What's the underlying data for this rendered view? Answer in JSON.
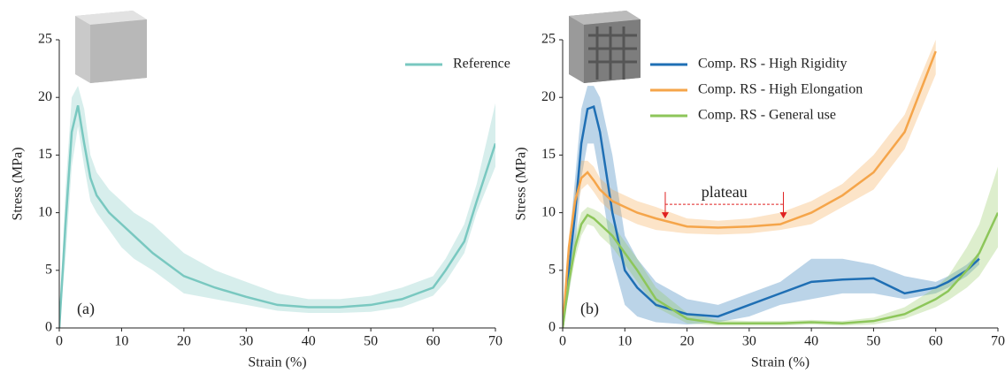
{
  "chart_data": [
    {
      "type": "line",
      "label": "(a)",
      "xlabel": "Strain (%)",
      "ylabel": "Stress (MPa)",
      "xlim": [
        0,
        70
      ],
      "xticks": [
        0,
        10,
        20,
        30,
        40,
        50,
        60,
        70
      ],
      "ylim": [
        0,
        25
      ],
      "yticks": [
        0,
        5,
        10,
        15,
        20,
        25
      ],
      "legend": "upper right",
      "x": [
        0,
        1,
        2,
        3,
        4,
        5,
        6,
        8,
        10,
        12,
        15,
        20,
        25,
        30,
        35,
        40,
        45,
        50,
        55,
        60,
        62,
        65,
        67,
        70
      ],
      "series": [
        {
          "name": "Reference",
          "color": "#79c8c0",
          "values": [
            0,
            9,
            17,
            19.3,
            16,
            13,
            11.5,
            10,
            9,
            8,
            6.5,
            4.5,
            3.5,
            2.7,
            2,
            1.8,
            1.8,
            2,
            2.5,
            3.5,
            5,
            7.5,
            11,
            16
          ],
          "upper": [
            0,
            12,
            20,
            21,
            19,
            15,
            13.5,
            12,
            11,
            10,
            9,
            6.5,
            5,
            4,
            3,
            2.5,
            2.5,
            2.8,
            3.5,
            4.5,
            6,
            9,
            12.5,
            19.5
          ],
          "lower": [
            0,
            6,
            14,
            17.5,
            14,
            11,
            10,
            8.5,
            7,
            6,
            5,
            3,
            2.5,
            2,
            1.5,
            1.3,
            1.3,
            1.4,
            1.8,
            2.8,
            4,
            6.5,
            10,
            14
          ]
        }
      ]
    },
    {
      "type": "line",
      "label": "(b)",
      "xlabel": "Strain (%)",
      "ylabel": "Stress (MPa)",
      "xlim": [
        0,
        70
      ],
      "xticks": [
        0,
        10,
        20,
        30,
        40,
        50,
        60,
        70
      ],
      "ylim": [
        0,
        25
      ],
      "yticks": [
        0,
        5,
        10,
        15,
        20,
        25
      ],
      "legend": "upper center",
      "x": [
        0,
        1,
        2,
        3,
        4,
        5,
        6,
        8,
        10,
        12,
        15,
        20,
        25,
        30,
        35,
        40,
        45,
        50,
        55,
        60,
        62,
        65,
        67,
        70
      ],
      "series": [
        {
          "name": "Comp. RS - High Rigidity",
          "color": "#1f6fb4",
          "values": [
            0,
            5,
            10,
            16,
            19,
            19.2,
            17,
            10,
            5,
            3.5,
            2,
            1.2,
            1,
            2,
            3,
            4,
            4.2,
            4.3,
            3,
            3.5,
            4,
            5,
            6,
            null
          ],
          "upper": [
            0,
            7,
            13,
            19,
            21,
            21,
            20,
            15,
            8,
            6,
            4,
            2.5,
            2,
            3,
            4,
            6,
            6,
            5.5,
            4.5,
            4,
            4.5,
            5.5,
            6.5,
            null
          ],
          "lower": [
            0,
            3,
            7,
            13,
            16,
            16,
            13,
            6,
            2,
            1,
            0.5,
            0.3,
            0.5,
            1,
            2,
            2.5,
            3,
            3,
            2.5,
            3,
            3.5,
            4.5,
            5.5,
            null
          ]
        },
        {
          "name": "Comp. RS - High Elongation",
          "color": "#f5a54a",
          "values": [
            0,
            7,
            11,
            13,
            13.5,
            12.8,
            12,
            11,
            10.5,
            10,
            9.5,
            8.8,
            8.7,
            8.8,
            9,
            10,
            11.5,
            13.5,
            17,
            24,
            null,
            null,
            null,
            null
          ],
          "upper": [
            0,
            8,
            12,
            14.5,
            14.5,
            14,
            13,
            12,
            11.5,
            11,
            10.5,
            9.5,
            9.3,
            9.5,
            10,
            11,
            12.5,
            15,
            18.5,
            25,
            null,
            null,
            null,
            null
          ],
          "lower": [
            0,
            6,
            10,
            12,
            12.5,
            11.8,
            11,
            10,
            9.5,
            9,
            8.5,
            8.2,
            8.1,
            8.2,
            8.5,
            9,
            10.5,
            12,
            15.5,
            22,
            null,
            null,
            null,
            null
          ]
        },
        {
          "name": "Comp. RS - General use",
          "color": "#8dc65a",
          "values": [
            0,
            4,
            7,
            9,
            9.8,
            9.5,
            9,
            8,
            6.5,
            5,
            2.5,
            0.8,
            0.4,
            0.4,
            0.4,
            0.5,
            0.4,
            0.6,
            1.2,
            2.5,
            3.2,
            5,
            6.5,
            10
          ],
          "upper": [
            0,
            5,
            8,
            10,
            10.5,
            10.3,
            10,
            9,
            7.5,
            6,
            3.5,
            1.3,
            0.7,
            0.6,
            0.6,
            0.7,
            0.6,
            0.9,
            1.8,
            3.5,
            4.5,
            7,
            9,
            14
          ],
          "lower": [
            0,
            3,
            6,
            8,
            9,
            8.8,
            8,
            7,
            5.5,
            4,
            1.8,
            0.4,
            0.2,
            0.2,
            0.2,
            0.3,
            0.2,
            0.3,
            0.8,
            1.8,
            2.4,
            3.5,
            4.5,
            7
          ]
        }
      ],
      "annotation": {
        "text": "plateau",
        "x": [
          16.5,
          35.5
        ],
        "y": 9.5,
        "color": "#e02020"
      }
    }
  ]
}
